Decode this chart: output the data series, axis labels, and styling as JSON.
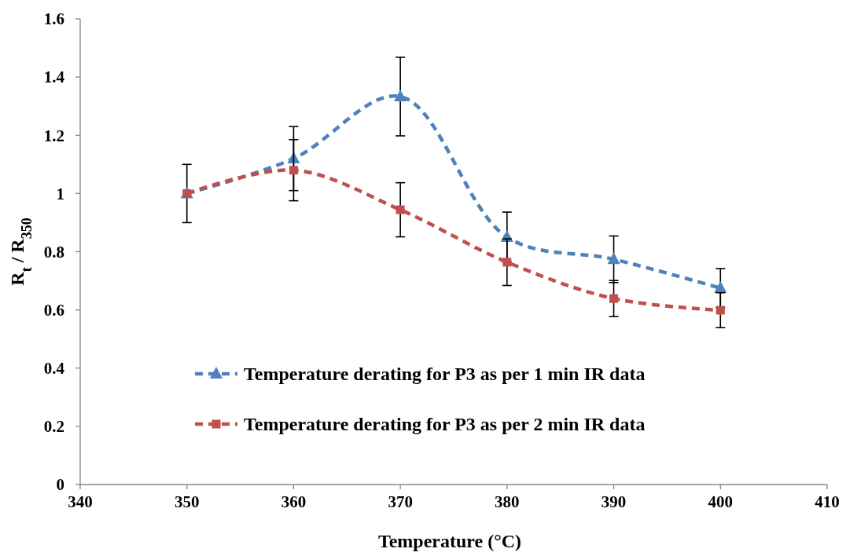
{
  "chart_data": {
    "type": "line",
    "xlabel": "Temperature (°C)",
    "ylabel": "R$_{t}$ / R$_{350}$",
    "x": [
      350,
      360,
      370,
      380,
      390,
      400
    ],
    "xlim": [
      340,
      410
    ],
    "xticks": [
      340,
      350,
      360,
      370,
      380,
      390,
      400,
      410
    ],
    "ylim": [
      0,
      1.6
    ],
    "yticks": [
      0,
      0.2,
      0.4,
      0.6,
      0.8,
      1,
      1.2,
      1.4,
      1.6
    ],
    "grid": false,
    "legend": "bottom",
    "line_style": "dashed",
    "series": [
      {
        "name": "Temperature derating for P3 as per 1 min IR data",
        "color": "#4f81bd",
        "marker": "triangle",
        "values": [
          1,
          1.12,
          1.333,
          0.85,
          0.774,
          0.675
        ],
        "errors": [
          0.1,
          0.11,
          0.135,
          0.086,
          0.08,
          0.067
        ]
      },
      {
        "name": "Temperature derating for P3 as per 2 min IR data",
        "color": "#c0504d",
        "marker": "square",
        "values": [
          1,
          1.08,
          0.944,
          0.764,
          0.639,
          0.599
        ],
        "errors": [
          0.1,
          0.105,
          0.093,
          0.08,
          0.062,
          0.06
        ]
      }
    ]
  }
}
